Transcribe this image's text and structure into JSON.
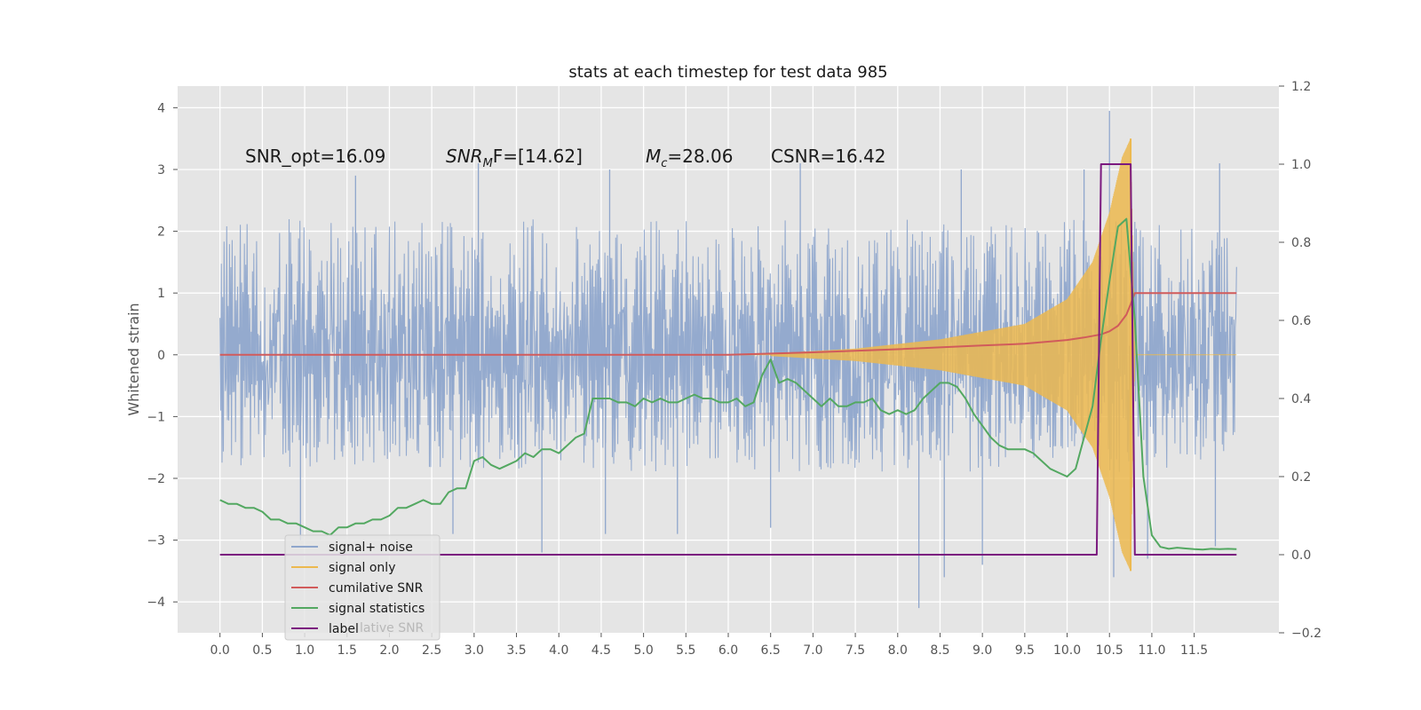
{
  "chart_data": {
    "type": "line",
    "title": "stats at each timestep for test data 985",
    "ylabel": "Whitened strain",
    "ylabel_right": "",
    "xlim": [
      -0.5,
      12.5
    ],
    "ylim": [
      -4.5,
      4.35
    ],
    "ylim_right": [
      -0.2,
      1.2
    ],
    "x_ticks": [
      "0.0",
      "0.5",
      "1.0",
      "1.5",
      "2.0",
      "2.5",
      "3.0",
      "3.5",
      "4.0",
      "4.5",
      "5.0",
      "5.5",
      "6.0",
      "6.5",
      "7.0",
      "7.5",
      "8.0",
      "8.5",
      "9.0",
      "9.5",
      "10.0",
      "10.5",
      "11.0",
      "11.5"
    ],
    "y_ticks_left": [
      "4",
      "3",
      "2",
      "1",
      "0",
      "−1",
      "−2",
      "−3",
      "−4"
    ],
    "y_ticks_right": [
      "1.2",
      "1.0",
      "0.8",
      "0.6",
      "0.4",
      "0.2",
      "0.0",
      "−0.2"
    ],
    "grid": true,
    "legend_position": "lower-left",
    "annotations": {
      "snr_opt": "SNR_opt=16.09",
      "snr_mf_main": "SNR",
      "snr_mf_sub": "M",
      "snr_mf_rest": "F=[14.62]",
      "mc_main": "M",
      "mc_sub": "c",
      "mc_rest": "=28.06",
      "csnr": "CSNR=16.42",
      "legend_hidden_text": "lative SNR"
    },
    "series": [
      {
        "name": "signal+ noise",
        "color": "#8fa6cc",
        "axis": "left",
        "x_range": [
          0,
          12
        ],
        "band": [
          {
            "x": 0,
            "lo": -1.8,
            "hi": 2.2
          },
          {
            "x": 6,
            "lo": -1.9,
            "hi": 2.2
          },
          {
            "x": 10.5,
            "lo": -1.9,
            "hi": 2.2
          },
          {
            "x": 12,
            "lo": -1.9,
            "hi": 2.0
          }
        ],
        "spikes": [
          {
            "x": 0.95,
            "y": -3.0
          },
          {
            "x": 1.6,
            "y": 2.9
          },
          {
            "x": 2.75,
            "y": -2.9
          },
          {
            "x": 3.05,
            "y": 3.1
          },
          {
            "x": 3.8,
            "y": -3.2
          },
          {
            "x": 4.55,
            "y": -2.9
          },
          {
            "x": 4.6,
            "y": 3.0
          },
          {
            "x": 5.4,
            "y": -2.9
          },
          {
            "x": 6.5,
            "y": -2.8
          },
          {
            "x": 6.85,
            "y": 3.1
          },
          {
            "x": 8.25,
            "y": -4.1
          },
          {
            "x": 8.55,
            "y": -3.6
          },
          {
            "x": 8.75,
            "y": 3.0
          },
          {
            "x": 9.0,
            "y": -3.4
          },
          {
            "x": 10.2,
            "y": 3.0
          },
          {
            "x": 10.5,
            "y": 3.95
          },
          {
            "x": 10.55,
            "y": -3.6
          },
          {
            "x": 10.95,
            "y": -3.3
          },
          {
            "x": 11.8,
            "y": 3.1
          },
          {
            "x": 11.75,
            "y": -3.1
          }
        ]
      },
      {
        "name": "signal only",
        "color": "#ecb94f",
        "axis": "left",
        "envelope": [
          [
            6.5,
            0.02
          ],
          [
            7.5,
            0.1
          ],
          [
            8.5,
            0.25
          ],
          [
            9.5,
            0.5
          ],
          [
            10.0,
            0.9
          ],
          [
            10.3,
            1.5
          ],
          [
            10.5,
            2.3
          ],
          [
            10.65,
            3.2
          ],
          [
            10.75,
            3.5
          ],
          [
            10.8,
            0.0
          ],
          [
            12,
            0.0
          ]
        ],
        "chirp_start": 6.5,
        "chirp_end": 10.8,
        "flat_after": [
          10.8,
          12
        ]
      },
      {
        "name": "cumilative SNR",
        "color": "#d15b5b",
        "axis": "left",
        "x": [
          0,
          6,
          7,
          8,
          9,
          9.5,
          10.0,
          10.2,
          10.4,
          10.5,
          10.6,
          10.7,
          10.75,
          10.8,
          12
        ],
        "y": [
          0,
          0,
          0.04,
          0.09,
          0.15,
          0.18,
          0.24,
          0.28,
          0.33,
          0.38,
          0.47,
          0.65,
          0.82,
          1.0,
          1.0
        ]
      },
      {
        "name": "signal statistics",
        "color": "#53a861",
        "axis": "right",
        "x": [
          0,
          0.1,
          0.2,
          0.3,
          0.4,
          0.5,
          0.6,
          0.7,
          0.8,
          0.9,
          1.0,
          1.1,
          1.2,
          1.3,
          1.4,
          1.5,
          1.6,
          1.7,
          1.8,
          1.9,
          2.0,
          2.1,
          2.2,
          2.3,
          2.4,
          2.5,
          2.6,
          2.7,
          2.8,
          2.9,
          3.0,
          3.1,
          3.2,
          3.3,
          3.4,
          3.5,
          3.6,
          3.7,
          3.8,
          3.9,
          4.0,
          4.1,
          4.2,
          4.3,
          4.4,
          4.5,
          4.6,
          4.7,
          4.8,
          4.9,
          5.0,
          5.1,
          5.2,
          5.3,
          5.4,
          5.5,
          5.6,
          5.7,
          5.8,
          5.9,
          6.0,
          6.1,
          6.2,
          6.3,
          6.4,
          6.5,
          6.6,
          6.7,
          6.8,
          6.9,
          7.0,
          7.1,
          7.2,
          7.3,
          7.4,
          7.5,
          7.6,
          7.7,
          7.8,
          7.9,
          8.0,
          8.1,
          8.2,
          8.3,
          8.4,
          8.5,
          8.6,
          8.7,
          8.8,
          8.9,
          9.0,
          9.1,
          9.2,
          9.3,
          9.4,
          9.5,
          9.6,
          9.7,
          9.8,
          9.9,
          10.0,
          10.1,
          10.2,
          10.3,
          10.4,
          10.5,
          10.6,
          10.7,
          10.8,
          10.9,
          11.0,
          11.1,
          11.2,
          11.3,
          11.4,
          11.5,
          11.6,
          11.7,
          11.8,
          11.9,
          12.0
        ],
        "y": [
          0.14,
          0.13,
          0.13,
          0.12,
          0.12,
          0.11,
          0.09,
          0.09,
          0.08,
          0.08,
          0.07,
          0.06,
          0.06,
          0.05,
          0.07,
          0.07,
          0.08,
          0.08,
          0.09,
          0.09,
          0.1,
          0.12,
          0.12,
          0.13,
          0.14,
          0.13,
          0.13,
          0.16,
          0.17,
          0.17,
          0.24,
          0.25,
          0.23,
          0.22,
          0.23,
          0.24,
          0.26,
          0.25,
          0.27,
          0.27,
          0.26,
          0.28,
          0.3,
          0.31,
          0.4,
          0.4,
          0.4,
          0.39,
          0.39,
          0.38,
          0.4,
          0.39,
          0.4,
          0.39,
          0.39,
          0.4,
          0.41,
          0.4,
          0.4,
          0.39,
          0.39,
          0.4,
          0.38,
          0.39,
          0.46,
          0.5,
          0.44,
          0.45,
          0.44,
          0.42,
          0.4,
          0.38,
          0.4,
          0.38,
          0.38,
          0.39,
          0.39,
          0.4,
          0.37,
          0.36,
          0.37,
          0.36,
          0.37,
          0.4,
          0.42,
          0.44,
          0.44,
          0.43,
          0.4,
          0.36,
          0.33,
          0.3,
          0.28,
          0.27,
          0.27,
          0.27,
          0.26,
          0.24,
          0.22,
          0.21,
          0.2,
          0.22,
          0.3,
          0.38,
          0.55,
          0.7,
          0.84,
          0.86,
          0.6,
          0.2,
          0.05,
          0.02,
          0.015,
          0.018,
          0.016,
          0.014,
          0.013,
          0.015,
          0.014,
          0.015,
          0.014
        ]
      },
      {
        "name": "label",
        "color": "#7b1a7f",
        "axis": "right",
        "x": [
          0,
          10.35,
          10.4,
          10.75,
          10.8,
          12
        ],
        "y": [
          0,
          0,
          1,
          1,
          0,
          0
        ]
      }
    ]
  },
  "colors": {
    "plot_bg": "#e5e5e5",
    "grid": "#ffffff",
    "text": "#555555"
  }
}
